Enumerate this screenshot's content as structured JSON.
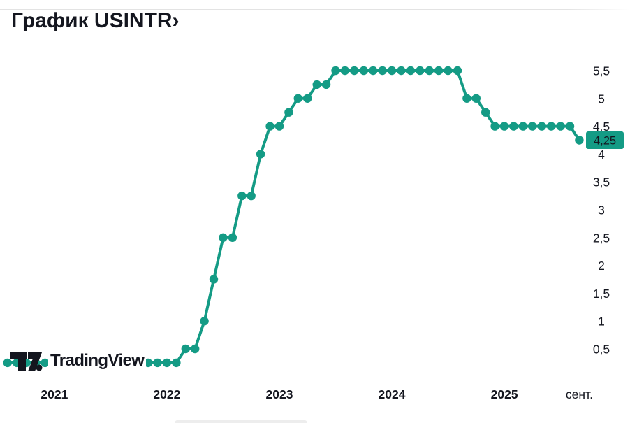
{
  "header": {
    "title": "График USINTR›"
  },
  "logo": {
    "text": "TradingView"
  },
  "colors": {
    "accent": "#149b85",
    "text": "#14161f",
    "badge_text": "#ffffff",
    "separator": "#e3e3e3",
    "background": "#ffffff"
  },
  "chart_data": {
    "type": "line",
    "symbol": "USINTR",
    "title": "График USINTR",
    "marker": "circle",
    "grid": false,
    "legend": false,
    "y_axis_side": "right",
    "ylim": [
      0.25,
      5.5
    ],
    "last_value": 4.25,
    "last_value_label": "4,25",
    "y_ticks": [
      {
        "value": 5.5,
        "label": "5,5"
      },
      {
        "value": 5.0,
        "label": "5"
      },
      {
        "value": 4.5,
        "label": "4,5"
      },
      {
        "value": 4.0,
        "label": "4"
      },
      {
        "value": 3.5,
        "label": "3,5"
      },
      {
        "value": 3.0,
        "label": "3"
      },
      {
        "value": 2.5,
        "label": "2,5"
      },
      {
        "value": 2.0,
        "label": "2"
      },
      {
        "value": 1.5,
        "label": "1,5"
      },
      {
        "value": 1.0,
        "label": "1"
      },
      {
        "value": 0.5,
        "label": "0,5"
      }
    ],
    "x_ticks": [
      {
        "label": "2021",
        "month": "2021-01",
        "bold": true
      },
      {
        "label": "2022",
        "month": "2022-01",
        "bold": true
      },
      {
        "label": "2023",
        "month": "2023-01",
        "bold": true
      },
      {
        "label": "2024",
        "month": "2024-01",
        "bold": true
      },
      {
        "label": "2025",
        "month": "2025-01",
        "bold": true
      },
      {
        "label": "сент.",
        "month": "2025-09",
        "bold": false
      }
    ],
    "months": [
      "2020-08",
      "2020-09",
      "2020-10",
      "2020-11",
      "2020-12",
      "2021-01",
      "2021-02",
      "2021-03",
      "2021-04",
      "2021-05",
      "2021-06",
      "2021-07",
      "2021-08",
      "2021-09",
      "2021-10",
      "2021-11",
      "2021-12",
      "2022-01",
      "2022-02",
      "2022-03",
      "2022-04",
      "2022-05",
      "2022-06",
      "2022-07",
      "2022-08",
      "2022-09",
      "2022-10",
      "2022-11",
      "2022-12",
      "2023-01",
      "2023-02",
      "2023-03",
      "2023-04",
      "2023-05",
      "2023-06",
      "2023-07",
      "2023-08",
      "2023-09",
      "2023-10",
      "2023-11",
      "2023-12",
      "2024-01",
      "2024-02",
      "2024-03",
      "2024-04",
      "2024-05",
      "2024-06",
      "2024-07",
      "2024-08",
      "2024-09",
      "2024-10",
      "2024-11",
      "2024-12",
      "2025-01",
      "2025-02",
      "2025-03",
      "2025-04",
      "2025-05",
      "2025-06",
      "2025-07",
      "2025-08",
      "2025-09"
    ],
    "values": [
      0.25,
      0.25,
      0.25,
      0.25,
      0.25,
      0.25,
      0.25,
      0.25,
      0.25,
      0.25,
      0.25,
      0.25,
      0.25,
      0.25,
      0.25,
      0.25,
      0.25,
      0.25,
      0.25,
      0.5,
      0.5,
      1.0,
      1.75,
      2.5,
      2.5,
      3.25,
      3.25,
      4.0,
      4.5,
      4.5,
      4.75,
      5.0,
      5.0,
      5.25,
      5.25,
      5.5,
      5.5,
      5.5,
      5.5,
      5.5,
      5.5,
      5.5,
      5.5,
      5.5,
      5.5,
      5.5,
      5.5,
      5.5,
      5.5,
      5.0,
      5.0,
      4.75,
      4.5,
      4.5,
      4.5,
      4.5,
      4.5,
      4.5,
      4.5,
      4.5,
      4.5,
      4.25
    ]
  }
}
